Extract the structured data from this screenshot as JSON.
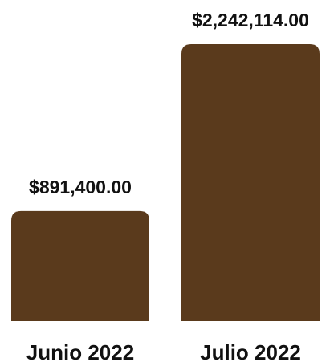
{
  "chart_data": {
    "type": "bar",
    "categories": [
      "Junio 2022",
      "Julio 2022"
    ],
    "values": [
      891400.0,
      2242114.0
    ],
    "value_labels": [
      "$891,400.00",
      "$2,242,114.00"
    ],
    "title": "",
    "xlabel": "",
    "ylabel": "",
    "ylim": [
      0,
      2242114.0
    ],
    "grid": false,
    "legend": "none",
    "bar_color": "#5a3a1c"
  }
}
